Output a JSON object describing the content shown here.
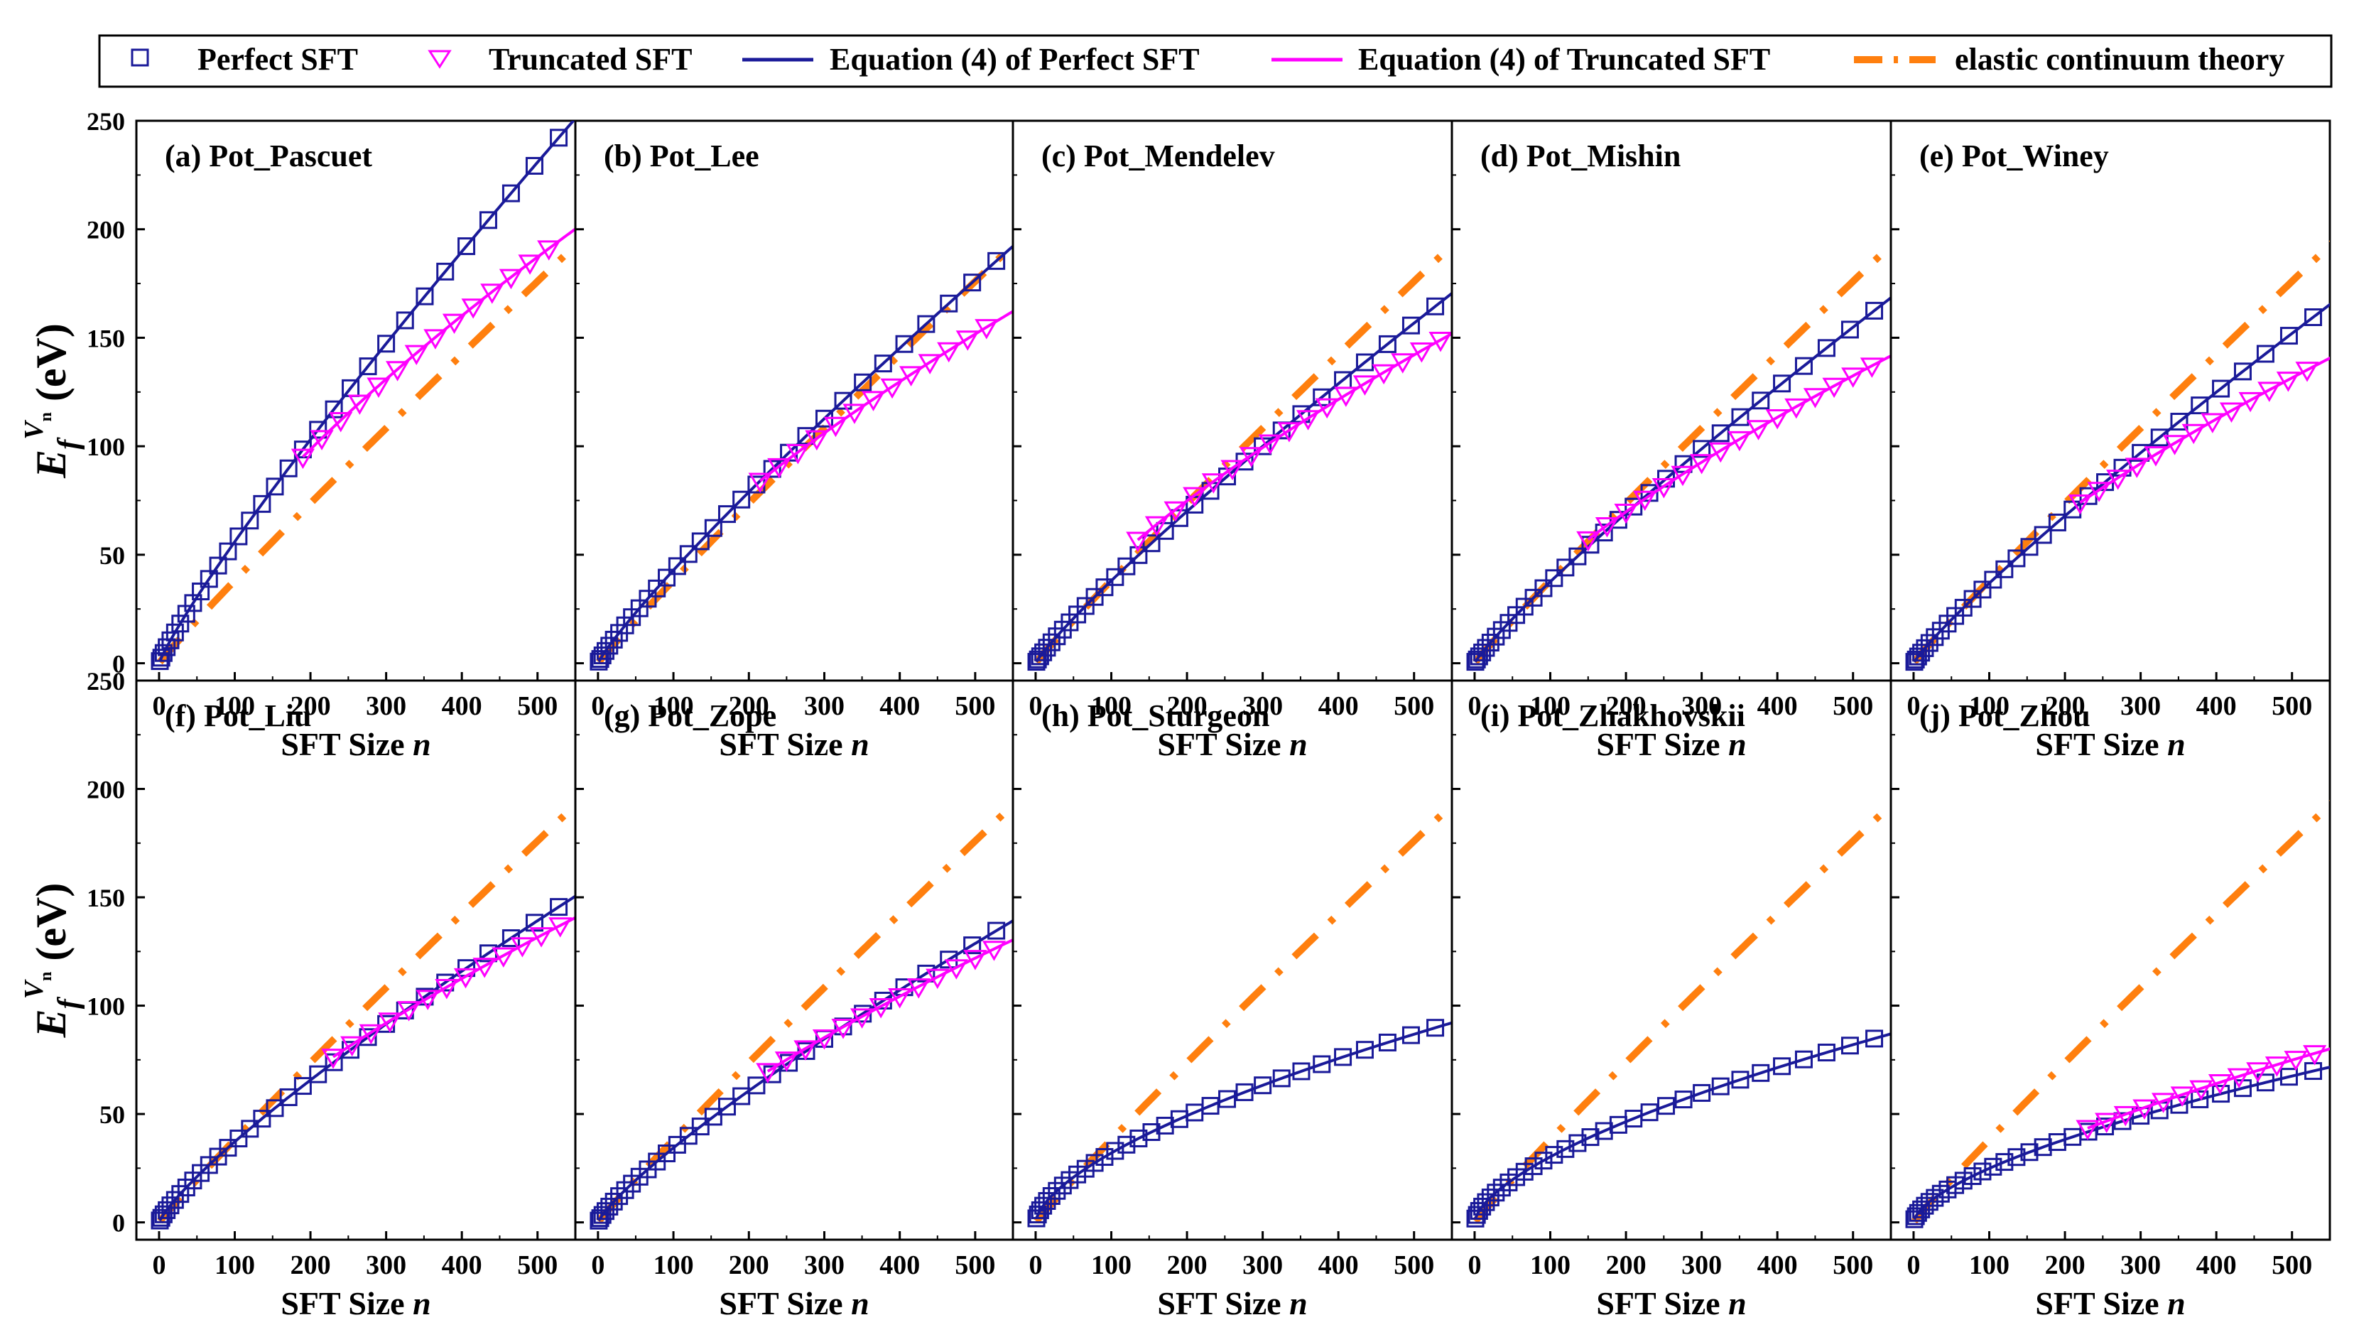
{
  "legend": {
    "entries": [
      {
        "name": "Perfect SFT",
        "kind": "square-marker",
        "color": "#1a1a99"
      },
      {
        "name": "Truncated SFT",
        "kind": "triangle-marker",
        "color": "#ff00ff"
      },
      {
        "name": "Equation (4) of Perfect SFT",
        "kind": "solid-line",
        "color": "#1a1a99"
      },
      {
        "name": "Equation (4) of Truncated SFT",
        "kind": "solid-line",
        "color": "#ff00ff"
      },
      {
        "name": "elastic continuum theory",
        "kind": "dash-dot-line",
        "color": "#ff7f0e"
      }
    ]
  },
  "colors": {
    "perfect": "#1a1a99",
    "truncated": "#ff00ff",
    "continuum": "#ff7f0e",
    "axis": "#000000"
  },
  "axes": {
    "xlabel_text": "SFT Size",
    "xlabel_var": "n",
    "ylabel_main": "E",
    "ylabel_sub": "f",
    "ylabel_sup": "V",
    "ylabel_supsup": "n",
    "ylabel_unit": "(eV)",
    "xlim": [
      -30,
      550
    ],
    "ylim": [
      -8,
      250
    ],
    "xticks": [
      0,
      100,
      200,
      300,
      400,
      500
    ],
    "yticks": [
      0,
      50,
      100,
      150,
      200,
      250
    ]
  },
  "chart_data": [
    {
      "panel": "(a) Pot_Pascuet",
      "type": "scatter+line",
      "perfect_end": 243,
      "truncated_start": 190,
      "truncated_end": 195,
      "has_truncated": true
    },
    {
      "panel": "(b) Pot_Lee",
      "type": "scatter+line",
      "perfect_end": 186,
      "truncated_start": 215,
      "truncated_end": 158,
      "has_truncated": true
    },
    {
      "panel": "(c) Pot_Mendelev",
      "type": "scatter+line",
      "perfect_end": 165,
      "truncated_start": 135,
      "truncated_end": 148,
      "has_truncated": true
    },
    {
      "panel": "(d) Pot_Mishin",
      "type": "scatter+line",
      "perfect_end": 163,
      "truncated_start": 150,
      "truncated_end": 138,
      "has_truncated": true
    },
    {
      "panel": "(e) Pot_Winey",
      "type": "scatter+line",
      "perfect_end": 160,
      "truncated_start": 220,
      "truncated_end": 137,
      "has_truncated": true
    },
    {
      "panel": "(f) Pot_Liu",
      "type": "scatter+line",
      "perfect_end": 146,
      "truncated_start": 230,
      "truncated_end": 137,
      "has_truncated": true
    },
    {
      "panel": "(g) Pot_Zope",
      "type": "scatter+line",
      "perfect_end": 135,
      "truncated_start": 225,
      "truncated_end": 127,
      "has_truncated": true
    },
    {
      "panel": "(h) Pot_Sturgeon",
      "type": "scatter+line",
      "perfect_end": 90,
      "has_truncated": false
    },
    {
      "panel": "(i) Pot_Zhakhovskii",
      "type": "scatter+line",
      "perfect_end": 85,
      "has_truncated": false
    },
    {
      "panel": "(j) Pot_Zhou",
      "type": "scatter+line",
      "perfect_end": 70,
      "truncated_start": 230,
      "truncated_end": 78,
      "has_truncated": true
    }
  ],
  "continuum_end": 186
}
